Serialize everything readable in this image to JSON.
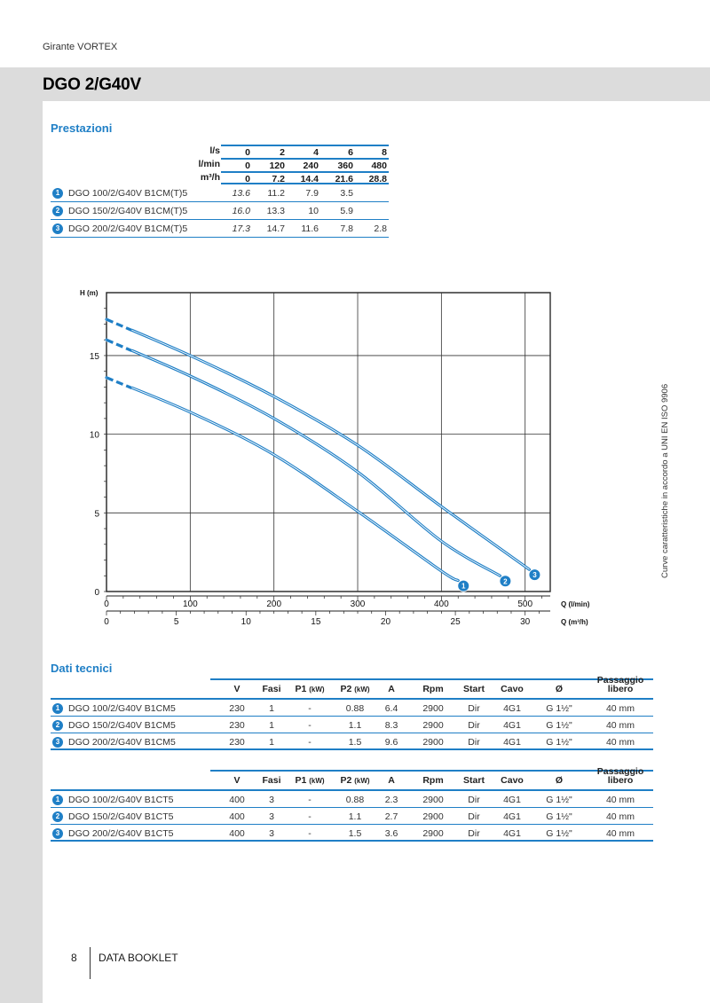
{
  "header": {
    "section_label": "Girante VORTEX",
    "title": "DGO 2/G40V"
  },
  "prestazioni": {
    "heading": "Prestazioni",
    "units": [
      {
        "label": "l/s",
        "values": [
          "0",
          "2",
          "4",
          "6",
          "8"
        ]
      },
      {
        "label": "l/min",
        "values": [
          "0",
          "120",
          "240",
          "360",
          "480"
        ]
      },
      {
        "label": "m³/h",
        "values": [
          "0",
          "7.2",
          "14.4",
          "21.6",
          "28.8"
        ]
      }
    ],
    "models": [
      {
        "badge": "1",
        "name": "DGO 100/2/G40V B1CM(T)5",
        "values": [
          "13.6",
          "11.2",
          "7.9",
          "3.5",
          ""
        ]
      },
      {
        "badge": "2",
        "name": "DGO 150/2/G40V B1CM(T)5",
        "values": [
          "16.0",
          "13.3",
          "10",
          "5.9",
          ""
        ]
      },
      {
        "badge": "3",
        "name": "DGO 200/2/G40V B1CM(T)5",
        "values": [
          "17.3",
          "14.7",
          "11.6",
          "7.8",
          "2.8"
        ]
      }
    ]
  },
  "chart_data": {
    "type": "line",
    "ylabel": "H (m)",
    "xlabel": "Q (l/min)",
    "x2label": "Q (m³/h)",
    "xlim": [
      0,
      530
    ],
    "ylim": [
      0,
      19
    ],
    "xticks": [
      "0",
      "100",
      "200",
      "300",
      "400",
      "500"
    ],
    "x2ticks": [
      "0",
      "5",
      "10",
      "15",
      "20",
      "25",
      "30"
    ],
    "yticks": [
      "0",
      "5",
      "10",
      "15"
    ],
    "grid": true,
    "series": [
      {
        "name": "1",
        "x": [
          0,
          100,
          200,
          300,
          400,
          420
        ],
        "y": [
          13.6,
          11.4,
          8.7,
          5.1,
          1.3,
          0.7
        ]
      },
      {
        "name": "2",
        "x": [
          0,
          100,
          200,
          300,
          400,
          470
        ],
        "y": [
          16.0,
          13.7,
          11.0,
          7.6,
          3.2,
          1.0
        ]
      },
      {
        "name": "3",
        "x": [
          0,
          100,
          200,
          300,
          400,
          505
        ],
        "y": [
          17.3,
          15.0,
          12.4,
          9.3,
          5.4,
          1.4
        ]
      }
    ],
    "side_note": "Curve caratteristiche in accordo a UNI EN ISO 9906"
  },
  "dati_tecnici": {
    "heading": "Dati tecnici",
    "columns": [
      "V",
      "Fasi",
      "P1",
      "(kW)",
      "P2",
      "(kW)",
      "A",
      "Rpm",
      "Start",
      "Cavo",
      "Ø",
      "Passaggio",
      "libero"
    ],
    "table1": [
      {
        "badge": "1",
        "name": "DGO 100/2/G40V B1CM5",
        "v": "230",
        "fasi": "1",
        "p1": "-",
        "p2": "0.88",
        "a": "6.4",
        "rpm": "2900",
        "start": "Dir",
        "cavo": "4G1",
        "phi": "G 1½\"",
        "pass": "40 mm"
      },
      {
        "badge": "2",
        "name": "DGO 150/2/G40V B1CM5",
        "v": "230",
        "fasi": "1",
        "p1": "-",
        "p2": "1.1",
        "a": "8.3",
        "rpm": "2900",
        "start": "Dir",
        "cavo": "4G1",
        "phi": "G 1½\"",
        "pass": "40 mm"
      },
      {
        "badge": "3",
        "name": "DGO 200/2/G40V B1CM5",
        "v": "230",
        "fasi": "1",
        "p1": "-",
        "p2": "1.5",
        "a": "9.6",
        "rpm": "2900",
        "start": "Dir",
        "cavo": "4G1",
        "phi": "G 1½\"",
        "pass": "40 mm"
      }
    ],
    "table2": [
      {
        "badge": "1",
        "name": "DGO 100/2/G40V B1CT5",
        "v": "400",
        "fasi": "3",
        "p1": "-",
        "p2": "0.88",
        "a": "2.3",
        "rpm": "2900",
        "start": "Dir",
        "cavo": "4G1",
        "phi": "G 1½\"",
        "pass": "40 mm"
      },
      {
        "badge": "2",
        "name": "DGO 150/2/G40V B1CT5",
        "v": "400",
        "fasi": "3",
        "p1": "-",
        "p2": "1.1",
        "a": "2.7",
        "rpm": "2900",
        "start": "Dir",
        "cavo": "4G1",
        "phi": "G 1½\"",
        "pass": "40 mm"
      },
      {
        "badge": "3",
        "name": "DGO 200/2/G40V B1CT5",
        "v": "400",
        "fasi": "3",
        "p1": "-",
        "p2": "1.5",
        "a": "3.6",
        "rpm": "2900",
        "start": "Dir",
        "cavo": "4G1",
        "phi": "G 1½\"",
        "pass": "40 mm"
      }
    ]
  },
  "footer": {
    "page": "8",
    "label": "DATA BOOKLET"
  },
  "colors": {
    "accent": "#1f7fc6",
    "band": "#dcdcdc"
  }
}
